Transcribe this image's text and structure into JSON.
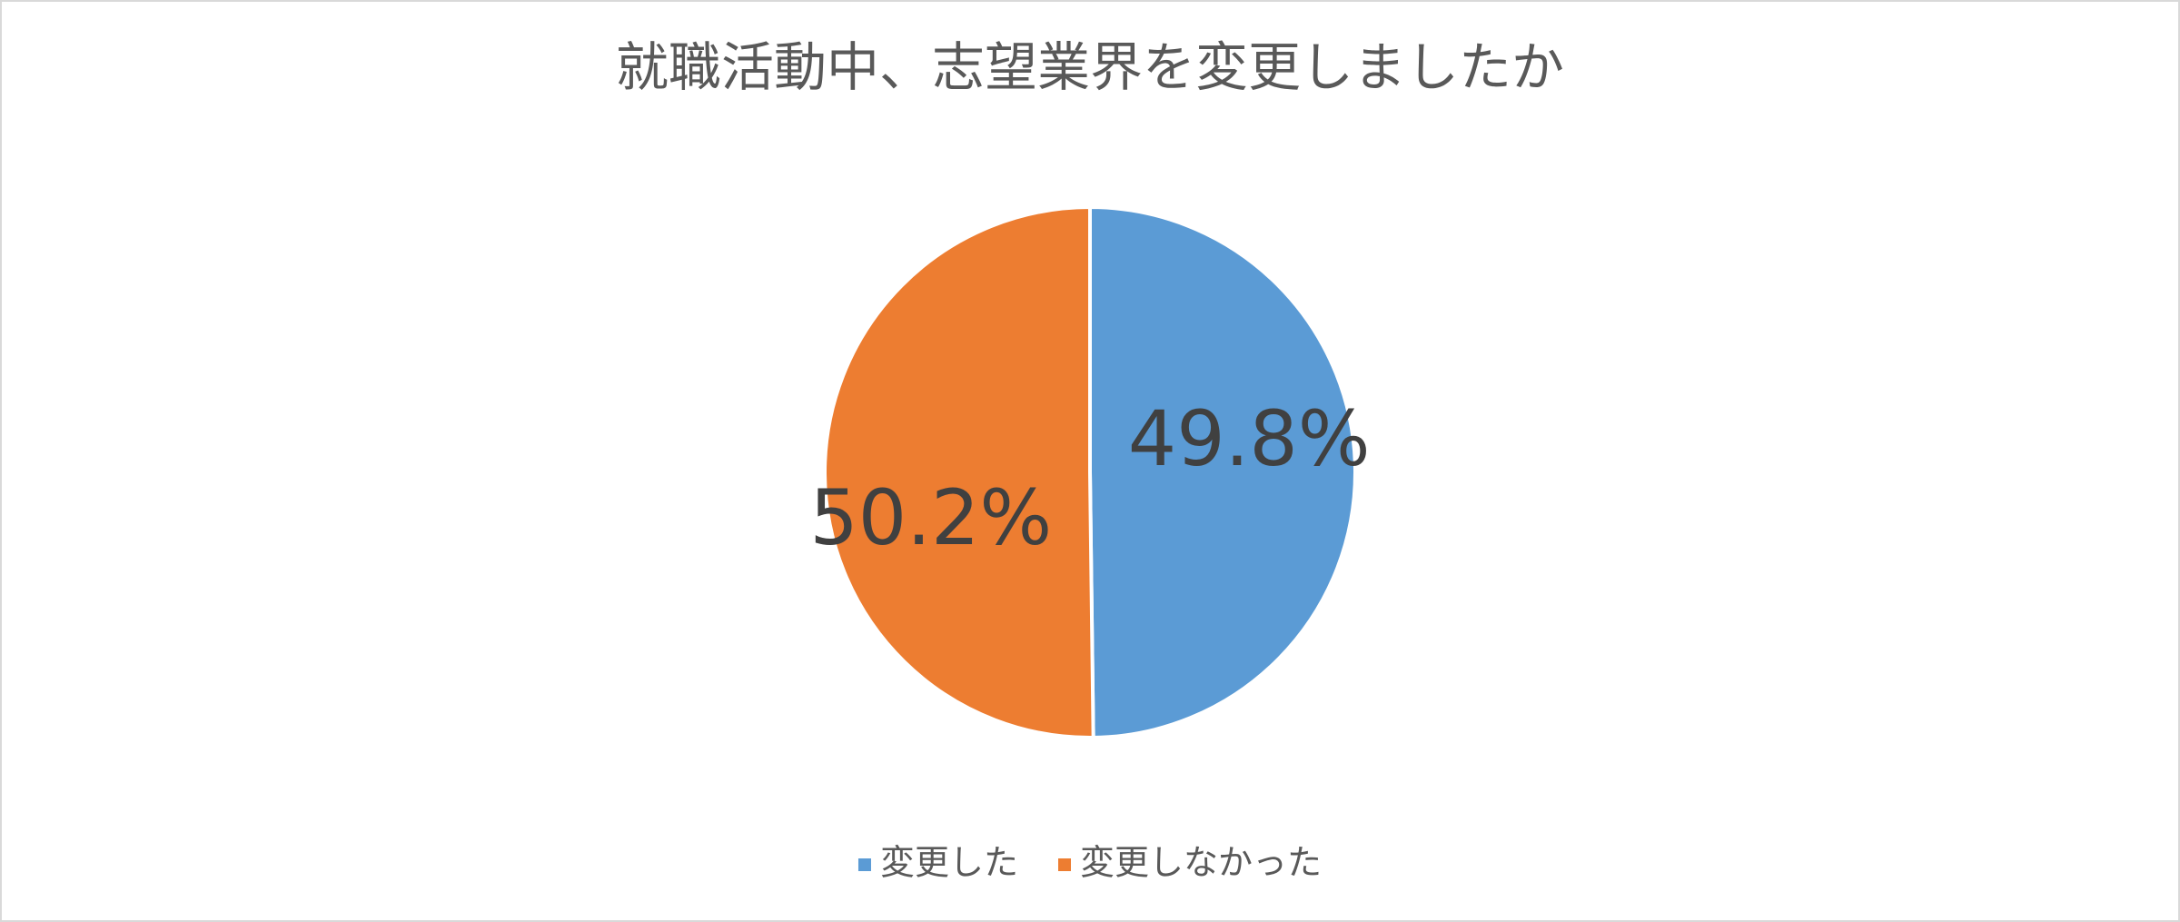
{
  "chart_data": {
    "type": "pie",
    "title": "就職活動中、志望業界を変更しましたか",
    "categories": [
      "変更した",
      "変更しなかった"
    ],
    "values": [
      49.8,
      50.2
    ],
    "value_labels": [
      "49.8%",
      "50.2%"
    ],
    "colors": [
      "#5b9bd5",
      "#ed7d31"
    ],
    "legend": "bottom"
  }
}
